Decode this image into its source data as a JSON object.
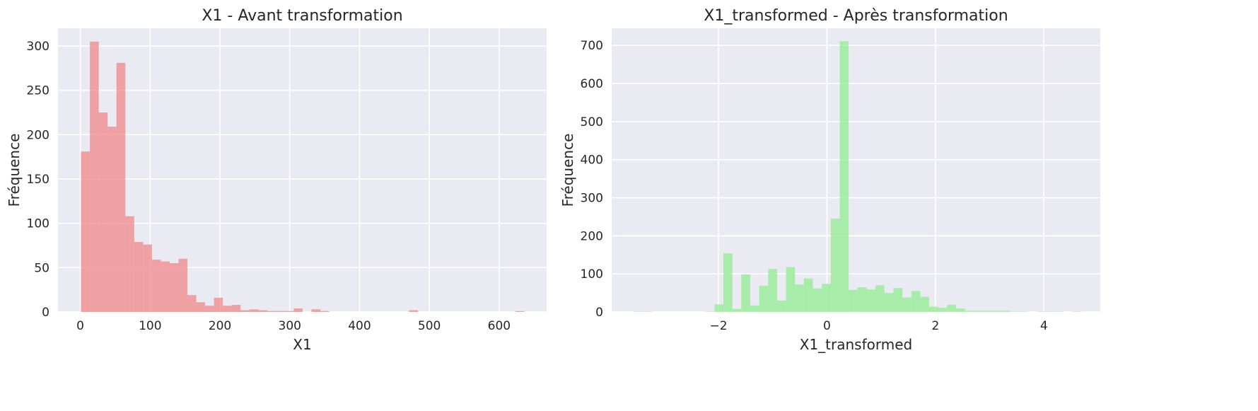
{
  "chart_data": [
    {
      "type": "bar",
      "title": "X1 - Avant transformation",
      "xlabel": "X1",
      "ylabel": "Fréquence",
      "xlim": [
        -32,
        668
      ],
      "ylim": [
        0,
        320
      ],
      "xticks": [
        0,
        100,
        200,
        300,
        400,
        500,
        600
      ],
      "yticks": [
        0,
        50,
        100,
        150,
        200,
        250,
        300
      ],
      "xtick_labels": [
        "0",
        "100",
        "200",
        "300",
        "400",
        "500",
        "600"
      ],
      "ytick_labels": [
        "0",
        "50",
        "100",
        "150",
        "200",
        "250",
        "300"
      ],
      "grid": true,
      "color": "#f08080",
      "opacity": 0.7,
      "x_start": 1,
      "bin_width": 12.7,
      "values": [
        181,
        305,
        225,
        209,
        281,
        108,
        79,
        76,
        59,
        57,
        55,
        60,
        19,
        11,
        7,
        16,
        7,
        8,
        2,
        3,
        2,
        1,
        1,
        1,
        4,
        0,
        3,
        1,
        0,
        0,
        0,
        0,
        0,
        0,
        0,
        0,
        0,
        2,
        0,
        0,
        0,
        0,
        0,
        0,
        0,
        0,
        0,
        0,
        0,
        1
      ]
    },
    {
      "type": "bar",
      "title": "X1_transformed - Après transformation",
      "xlabel": "X1_transformed",
      "ylabel": "Fréquence",
      "xlim": [
        -3.97,
        5.04
      ],
      "ylim": [
        0,
        745
      ],
      "xticks": [
        -2,
        0,
        2,
        4
      ],
      "yticks": [
        0,
        100,
        200,
        300,
        400,
        500,
        600,
        700
      ],
      "xtick_labels": [
        "−2",
        "0",
        "2",
        "4"
      ],
      "ytick_labels": [
        "0",
        "100",
        "200",
        "300",
        "400",
        "500",
        "600",
        "700"
      ],
      "grid": true,
      "color": "#90ee90",
      "opacity": 0.75,
      "x_start": -3.56,
      "bin_width": 0.165,
      "values": [
        1,
        1,
        0,
        0,
        0,
        0,
        0,
        0,
        1,
        20,
        154,
        8,
        99,
        17,
        69,
        113,
        30,
        118,
        72,
        88,
        62,
        74,
        245,
        711,
        58,
        65,
        59,
        70,
        50,
        63,
        38,
        55,
        40,
        14,
        11,
        19,
        9,
        3,
        3,
        3,
        3,
        3,
        1,
        1,
        0,
        1,
        1,
        1,
        0,
        1
      ]
    }
  ]
}
